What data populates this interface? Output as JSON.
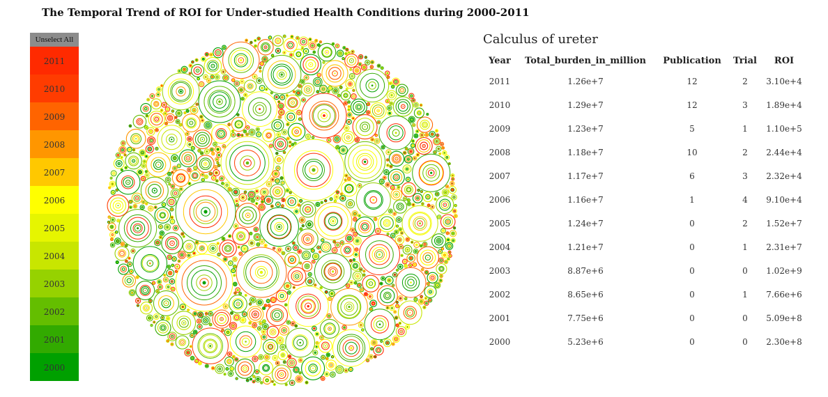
{
  "title": "The Temporal Trend of ROI for Under-studied Health Conditions during 2000-2011",
  "legend": {
    "unselect_label": "Unselect All",
    "years": [
      {
        "label": "2011",
        "color": "#ff2a00"
      },
      {
        "label": "2010",
        "color": "#ff3c00"
      },
      {
        "label": "2009",
        "color": "#ff6400"
      },
      {
        "label": "2008",
        "color": "#ff9600"
      },
      {
        "label": "2007",
        "color": "#ffc800"
      },
      {
        "label": "2006",
        "color": "#ffff00"
      },
      {
        "label": "2005",
        "color": "#e6f500"
      },
      {
        "label": "2004",
        "color": "#c8e600"
      },
      {
        "label": "2003",
        "color": "#96d200"
      },
      {
        "label": "2002",
        "color": "#64be00"
      },
      {
        "label": "2001",
        "color": "#32aa00"
      },
      {
        "label": "2000",
        "color": "#00a000"
      }
    ]
  },
  "detail": {
    "condition": "Calculus of ureter",
    "headers": [
      "Year",
      "Total_burden_in_million",
      "Publication",
      "Trial",
      "ROI"
    ],
    "rows": [
      [
        "2011",
        "1.26e+7",
        "12",
        "2",
        "3.10e+4"
      ],
      [
        "2010",
        "1.29e+7",
        "12",
        "3",
        "1.89e+4"
      ],
      [
        "2009",
        "1.23e+7",
        "5",
        "1",
        "1.10e+5"
      ],
      [
        "2008",
        "1.18e+7",
        "10",
        "2",
        "2.44e+4"
      ],
      [
        "2007",
        "1.17e+7",
        "6",
        "3",
        "2.32e+4"
      ],
      [
        "2006",
        "1.16e+7",
        "1",
        "4",
        "9.10e+4"
      ],
      [
        "2005",
        "1.24e+7",
        "0",
        "2",
        "1.52e+7"
      ],
      [
        "2004",
        "1.21e+7",
        "0",
        "1",
        "2.31e+7"
      ],
      [
        "2003",
        "8.87e+6",
        "0",
        "0",
        "1.02e+9"
      ],
      [
        "2002",
        "8.65e+6",
        "0",
        "1",
        "7.66e+6"
      ],
      [
        "2001",
        "7.75e+6",
        "0",
        "0",
        "5.09e+8"
      ],
      [
        "2000",
        "5.23e+6",
        "0",
        "0",
        "2.30e+8"
      ]
    ]
  },
  "chart_data": {
    "type": "bubble-pack",
    "encoding": "Each condition is a group of concentric circles, one ring per year 2000-2011, coloured by the year legend; ring radius reflects ROI for that year.",
    "selected_condition": "Calculus of ureter",
    "palette_years": [
      "2011",
      "2010",
      "2009",
      "2008",
      "2007",
      "2006",
      "2005",
      "2004",
      "2003",
      "2002",
      "2001",
      "2000"
    ]
  }
}
